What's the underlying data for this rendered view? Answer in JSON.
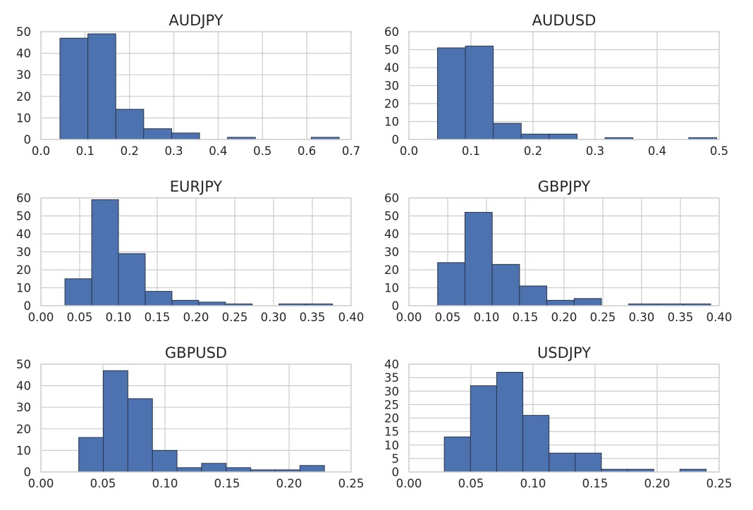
{
  "chart_data": [
    {
      "type": "bar",
      "subtype": "histogram",
      "title": "AUDJPY",
      "color": "#4c72b0",
      "xlim": [
        0.0,
        0.7
      ],
      "ylim": [
        0,
        50
      ],
      "xticks": [
        "0.0",
        "0.1",
        "0.2",
        "0.3",
        "0.4",
        "0.5",
        "0.6",
        "0.7"
      ],
      "yticks": [
        "0",
        "10",
        "20",
        "30",
        "40",
        "50"
      ],
      "grid": true,
      "bins": [
        0.043,
        0.106,
        0.169,
        0.232,
        0.295,
        0.358,
        0.421,
        0.484,
        0.547,
        0.61,
        0.673
      ],
      "counts": [
        47,
        49,
        14,
        5,
        3,
        0,
        1,
        0,
        0,
        1
      ]
    },
    {
      "type": "bar",
      "subtype": "histogram",
      "title": "AUDUSD",
      "color": "#4c72b0",
      "xlim": [
        0.0,
        0.5
      ],
      "ylim": [
        0,
        60
      ],
      "xticks": [
        "0.0",
        "0.1",
        "0.2",
        "0.3",
        "0.4",
        "0.5"
      ],
      "yticks": [
        "0",
        "10",
        "20",
        "30",
        "40",
        "50",
        "60"
      ],
      "grid": true,
      "bins": [
        0.046,
        0.091,
        0.136,
        0.181,
        0.226,
        0.271,
        0.316,
        0.361,
        0.406,
        0.451,
        0.496
      ],
      "counts": [
        51,
        52,
        9,
        3,
        3,
        0,
        1,
        0,
        0,
        1
      ]
    },
    {
      "type": "bar",
      "subtype": "histogram",
      "title": "EURJPY",
      "color": "#4c72b0",
      "xlim": [
        0.0,
        0.4
      ],
      "ylim": [
        0,
        60
      ],
      "xticks": [
        "0.00",
        "0.05",
        "0.10",
        "0.15",
        "0.20",
        "0.25",
        "0.30",
        "0.35",
        "0.40"
      ],
      "yticks": [
        "0",
        "10",
        "20",
        "30",
        "40",
        "50",
        "60"
      ],
      "grid": true,
      "bins": [
        0.031,
        0.0655,
        0.1,
        0.1345,
        0.169,
        0.2035,
        0.238,
        0.2725,
        0.307,
        0.3415,
        0.376
      ],
      "counts": [
        15,
        59,
        29,
        8,
        3,
        2,
        1,
        0,
        1,
        1
      ]
    },
    {
      "type": "bar",
      "subtype": "histogram",
      "title": "GBPJPY",
      "color": "#4c72b0",
      "xlim": [
        0.0,
        0.4
      ],
      "ylim": [
        0,
        60
      ],
      "xticks": [
        "0.00",
        "0.05",
        "0.10",
        "0.15",
        "0.20",
        "0.25",
        "0.30",
        "0.35",
        "0.40"
      ],
      "yticks": [
        "0",
        "10",
        "20",
        "30",
        "40",
        "50",
        "60"
      ],
      "grid": true,
      "bins": [
        0.037,
        0.0722,
        0.1074,
        0.1426,
        0.1778,
        0.213,
        0.2482,
        0.2834,
        0.3186,
        0.3538,
        0.389
      ],
      "counts": [
        24,
        52,
        23,
        11,
        3,
        4,
        0,
        1,
        1,
        1
      ]
    },
    {
      "type": "bar",
      "subtype": "histogram",
      "title": "GBPUSD",
      "color": "#4c72b0",
      "xlim": [
        0.0,
        0.25
      ],
      "ylim": [
        0,
        50
      ],
      "xticks": [
        "0.00",
        "0.05",
        "0.10",
        "0.15",
        "0.20",
        "0.25"
      ],
      "yticks": [
        "0",
        "10",
        "20",
        "30",
        "40",
        "50"
      ],
      "grid": true,
      "bins": [
        0.0305,
        0.0503,
        0.0701,
        0.0899,
        0.1097,
        0.1295,
        0.1493,
        0.1691,
        0.1889,
        0.2087,
        0.2285
      ],
      "counts": [
        16,
        47,
        34,
        10,
        2,
        4,
        2,
        1,
        1,
        3
      ]
    },
    {
      "type": "bar",
      "subtype": "histogram",
      "title": "USDJPY",
      "color": "#4c72b0",
      "xlim": [
        0.0,
        0.25
      ],
      "ylim": [
        0,
        40
      ],
      "xticks": [
        "0.00",
        "0.05",
        "0.10",
        "0.15",
        "0.20",
        "0.25"
      ],
      "yticks": [
        "0",
        "5",
        "10",
        "15",
        "20",
        "25",
        "30",
        "35",
        "40"
      ],
      "grid": true,
      "bins": [
        0.0285,
        0.0496,
        0.0707,
        0.0918,
        0.1129,
        0.134,
        0.1551,
        0.1762,
        0.1973,
        0.2184,
        0.2395
      ],
      "counts": [
        13,
        32,
        37,
        21,
        7,
        7,
        1,
        1,
        0,
        1
      ]
    }
  ]
}
